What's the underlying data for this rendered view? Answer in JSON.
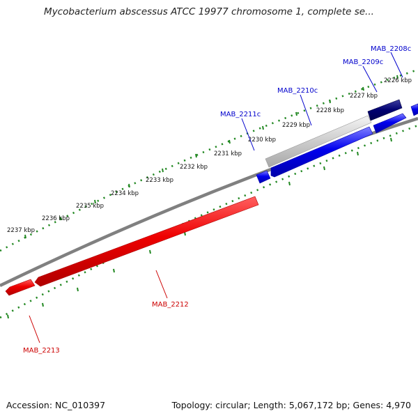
{
  "title": "Mycobacterium abscessus ATCC 19977 chromosome 1, complete se...",
  "footer": {
    "accession": "Accession: NC_010397",
    "summary": "Topology: circular; Length: 5,067,172 bp; Genes: 4,970"
  },
  "colors": {
    "forward_gene": "#0000ee",
    "forward_gene_dark": "#000080",
    "forward_gene_grey": "#c8c8c8",
    "reverse_gene": "#ee0000",
    "backbone": "#808080",
    "tick": "#228822"
  },
  "tick_labels": [
    "2226 kbp",
    "2227 kbp",
    "2228 kbp",
    "2229 kbp",
    "2230 kbp",
    "2231 kbp",
    "2232 kbp",
    "2233 kbp",
    "2234 kbp",
    "2235 kbp",
    "2236 kbp",
    "2237 kbp"
  ],
  "genes": [
    {
      "name": "MAB_2208c",
      "strand": "forward",
      "color": "#0000cc"
    },
    {
      "name": "MAB_2209c",
      "strand": "forward",
      "color": "#0000cc"
    },
    {
      "name": "MAB_2210c",
      "strand": "forward",
      "color": "#0000cc"
    },
    {
      "name": "MAB_2211c",
      "strand": "forward",
      "color": "#0000cc"
    },
    {
      "name": "MAB_2212",
      "strand": "reverse",
      "color": "#cc0000"
    },
    {
      "name": "MAB_2213",
      "strand": "reverse",
      "color": "#cc0000"
    }
  ]
}
